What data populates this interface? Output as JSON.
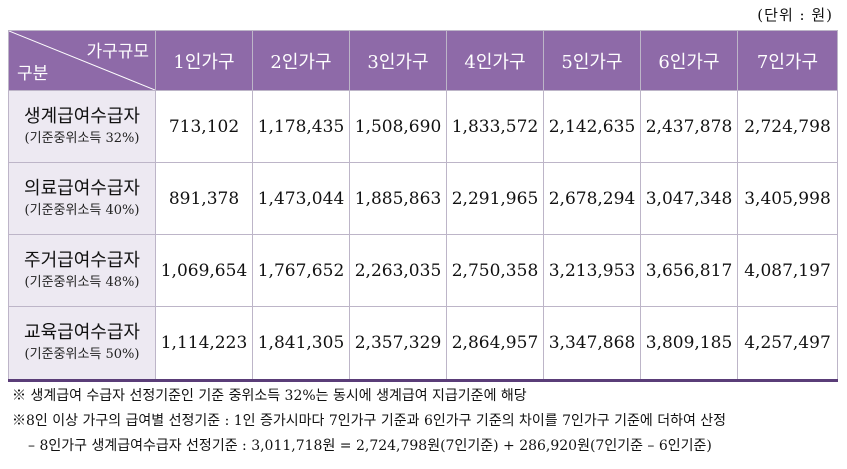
{
  "unit_label": "(단위 : 원)",
  "table": {
    "corner_top": "가구규모",
    "corner_bottom": "구분",
    "columns": [
      "1인가구",
      "2인가구",
      "3인가구",
      "4인가구",
      "5인가구",
      "6인가구",
      "7인가구"
    ],
    "rows": [
      {
        "name": "생계급여수급자",
        "sub": "(기준중위소득 32%)",
        "values": [
          "713,102",
          "1,178,435",
          "1,508,690",
          "1,833,572",
          "2,142,635",
          "2,437,878",
          "2,724,798"
        ]
      },
      {
        "name": "의료급여수급자",
        "sub": "(기준중위소득 40%)",
        "values": [
          "891,378",
          "1,473,044",
          "1,885,863",
          "2,291,965",
          "2,678,294",
          "3,047,348",
          "3,405,998"
        ]
      },
      {
        "name": "주거급여수급자",
        "sub": "(기준중위소득 48%)",
        "values": [
          "1,069,654",
          "1,767,652",
          "2,263,035",
          "2,750,358",
          "3,213,953",
          "3,656,817",
          "4,087,197"
        ]
      },
      {
        "name": "교육급여수급자",
        "sub": "(기준중위소득 50%)",
        "values": [
          "1,114,223",
          "1,841,305",
          "2,357,329",
          "2,864,957",
          "3,347,868",
          "3,809,185",
          "4,257,497"
        ]
      }
    ]
  },
  "notes": [
    "※ 생계급여 수급자 선정기준인 기준 중위소득 32%는 동시에 생계급여 지급기준에 해당",
    "※8인 이상 가구의 급여별 선정기준 : 1인 증가시마다 7인가구 기준과 6인가구 기준의 차이를 7인가구 기준에 더하여 산정",
    "– 8인가구 생계급여수급자 선정기준 : 3,011,718원 = 2,724,798원(7인기준) + 286,920원(7인기준 – 6인기준)"
  ]
}
